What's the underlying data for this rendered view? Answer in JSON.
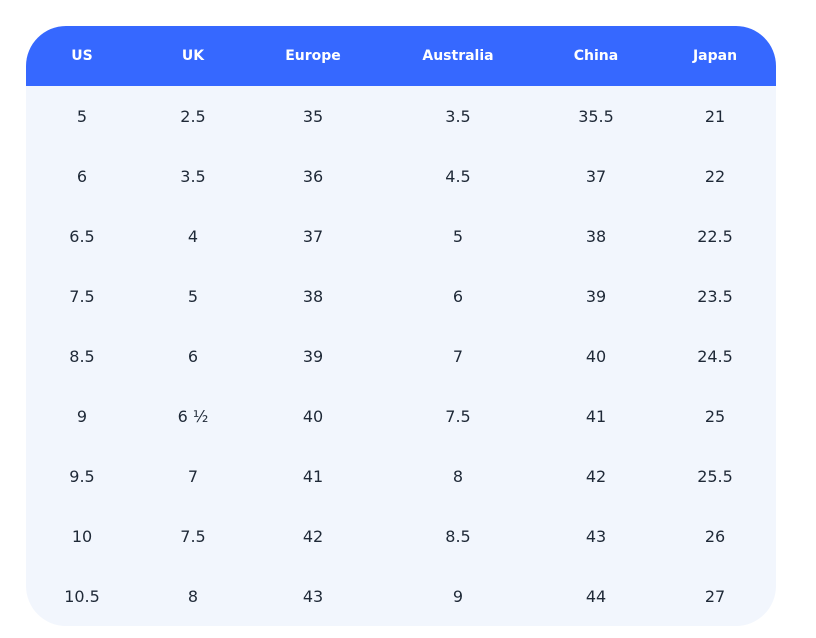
{
  "table": {
    "headers": [
      "US",
      "UK",
      "Europe",
      "Australia",
      "China",
      "Japan"
    ],
    "rows": [
      [
        "5",
        "2.5",
        "35",
        "3.5",
        "35.5",
        "21"
      ],
      [
        "6",
        "3.5",
        "36",
        "4.5",
        "37",
        "22"
      ],
      [
        "6.5",
        "4",
        "37",
        "5",
        "38",
        "22.5"
      ],
      [
        "7.5",
        "5",
        "38",
        "6",
        "39",
        "23.5"
      ],
      [
        "8.5",
        "6",
        "39",
        "7",
        "40",
        "24.5"
      ],
      [
        "9",
        "6 ½",
        "40",
        "7.5",
        "41",
        "25"
      ],
      [
        "9.5",
        "7",
        "41",
        "8",
        "42",
        "25.5"
      ],
      [
        "10",
        "7.5",
        "42",
        "8.5",
        "43",
        "26"
      ],
      [
        "10.5",
        "8",
        "43",
        "9",
        "44",
        "27"
      ]
    ]
  }
}
